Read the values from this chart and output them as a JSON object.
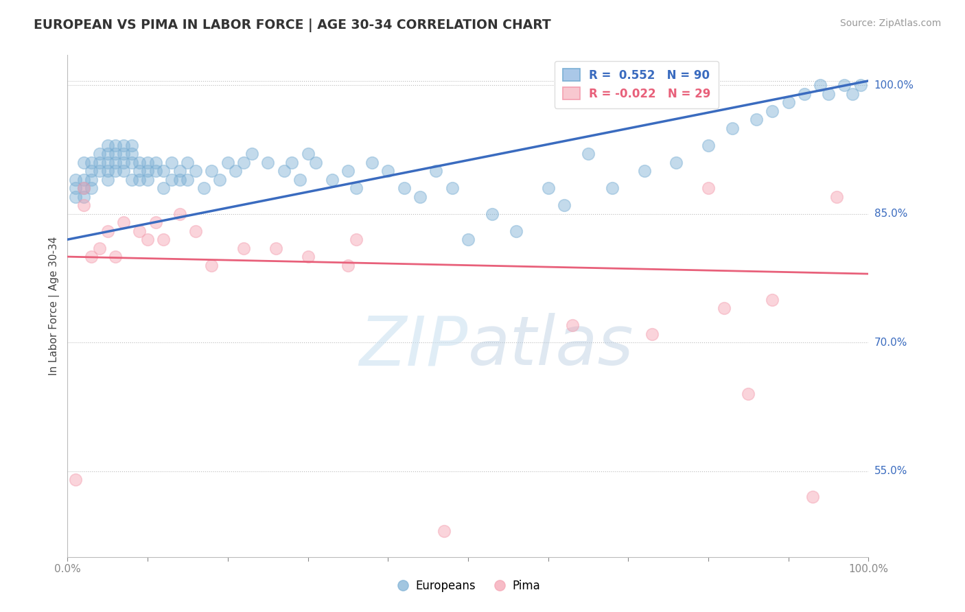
{
  "title": "EUROPEAN VS PIMA IN LABOR FORCE | AGE 30-34 CORRELATION CHART",
  "source_text": "Source: ZipAtlas.com",
  "ylabel": "In Labor Force | Age 30-34",
  "xlim": [
    0.0,
    1.0
  ],
  "ylim": [
    0.45,
    1.035
  ],
  "yticks": [
    0.55,
    0.7,
    0.85,
    1.0
  ],
  "ytick_labels": [
    "55.0%",
    "70.0%",
    "85.0%",
    "100.0%"
  ],
  "xtick_labels": [
    "0.0%",
    "100.0%"
  ],
  "background_color": "#ffffff",
  "legend_blue_r": "0.552",
  "legend_blue_n": "90",
  "legend_pink_r": "-0.022",
  "legend_pink_n": "29",
  "blue_color": "#7bafd4",
  "pink_color": "#f4a0b0",
  "line_blue_color": "#3a6bbf",
  "line_pink_color": "#e8607a",
  "blue_line_y0": 0.82,
  "blue_line_y1": 1.005,
  "pink_line_y0": 0.8,
  "pink_line_y1": 0.78,
  "europeans_x": [
    0.01,
    0.01,
    0.01,
    0.02,
    0.02,
    0.02,
    0.02,
    0.03,
    0.03,
    0.03,
    0.03,
    0.04,
    0.04,
    0.04,
    0.05,
    0.05,
    0.05,
    0.05,
    0.05,
    0.06,
    0.06,
    0.06,
    0.06,
    0.07,
    0.07,
    0.07,
    0.07,
    0.08,
    0.08,
    0.08,
    0.08,
    0.09,
    0.09,
    0.09,
    0.1,
    0.1,
    0.1,
    0.11,
    0.11,
    0.12,
    0.12,
    0.13,
    0.13,
    0.14,
    0.14,
    0.15,
    0.15,
    0.16,
    0.17,
    0.18,
    0.19,
    0.2,
    0.21,
    0.22,
    0.23,
    0.25,
    0.27,
    0.28,
    0.29,
    0.3,
    0.31,
    0.33,
    0.35,
    0.36,
    0.38,
    0.4,
    0.42,
    0.44,
    0.46,
    0.48,
    0.5,
    0.53,
    0.56,
    0.6,
    0.62,
    0.65,
    0.68,
    0.72,
    0.76,
    0.8,
    0.83,
    0.86,
    0.88,
    0.9,
    0.92,
    0.94,
    0.95,
    0.97,
    0.98,
    0.99
  ],
  "europeans_y": [
    0.89,
    0.88,
    0.87,
    0.91,
    0.89,
    0.88,
    0.87,
    0.91,
    0.9,
    0.89,
    0.88,
    0.92,
    0.91,
    0.9,
    0.93,
    0.92,
    0.91,
    0.9,
    0.89,
    0.93,
    0.92,
    0.91,
    0.9,
    0.93,
    0.92,
    0.91,
    0.9,
    0.93,
    0.92,
    0.91,
    0.89,
    0.91,
    0.9,
    0.89,
    0.91,
    0.9,
    0.89,
    0.91,
    0.9,
    0.9,
    0.88,
    0.91,
    0.89,
    0.9,
    0.89,
    0.91,
    0.89,
    0.9,
    0.88,
    0.9,
    0.89,
    0.91,
    0.9,
    0.91,
    0.92,
    0.91,
    0.9,
    0.91,
    0.89,
    0.92,
    0.91,
    0.89,
    0.9,
    0.88,
    0.91,
    0.9,
    0.88,
    0.87,
    0.9,
    0.88,
    0.82,
    0.85,
    0.83,
    0.88,
    0.86,
    0.92,
    0.88,
    0.9,
    0.91,
    0.93,
    0.95,
    0.96,
    0.97,
    0.98,
    0.99,
    1.0,
    0.99,
    1.0,
    0.99,
    1.0
  ],
  "pima_x": [
    0.01,
    0.02,
    0.02,
    0.03,
    0.04,
    0.05,
    0.06,
    0.07,
    0.09,
    0.1,
    0.11,
    0.12,
    0.14,
    0.16,
    0.18,
    0.22,
    0.26,
    0.3,
    0.35,
    0.36,
    0.47,
    0.63,
    0.73,
    0.8,
    0.82,
    0.85,
    0.88,
    0.93,
    0.96
  ],
  "pima_y": [
    0.54,
    0.88,
    0.86,
    0.8,
    0.81,
    0.83,
    0.8,
    0.84,
    0.83,
    0.82,
    0.84,
    0.82,
    0.85,
    0.83,
    0.79,
    0.81,
    0.81,
    0.8,
    0.79,
    0.82,
    0.48,
    0.72,
    0.71,
    0.88,
    0.74,
    0.64,
    0.75,
    0.52,
    0.87
  ]
}
